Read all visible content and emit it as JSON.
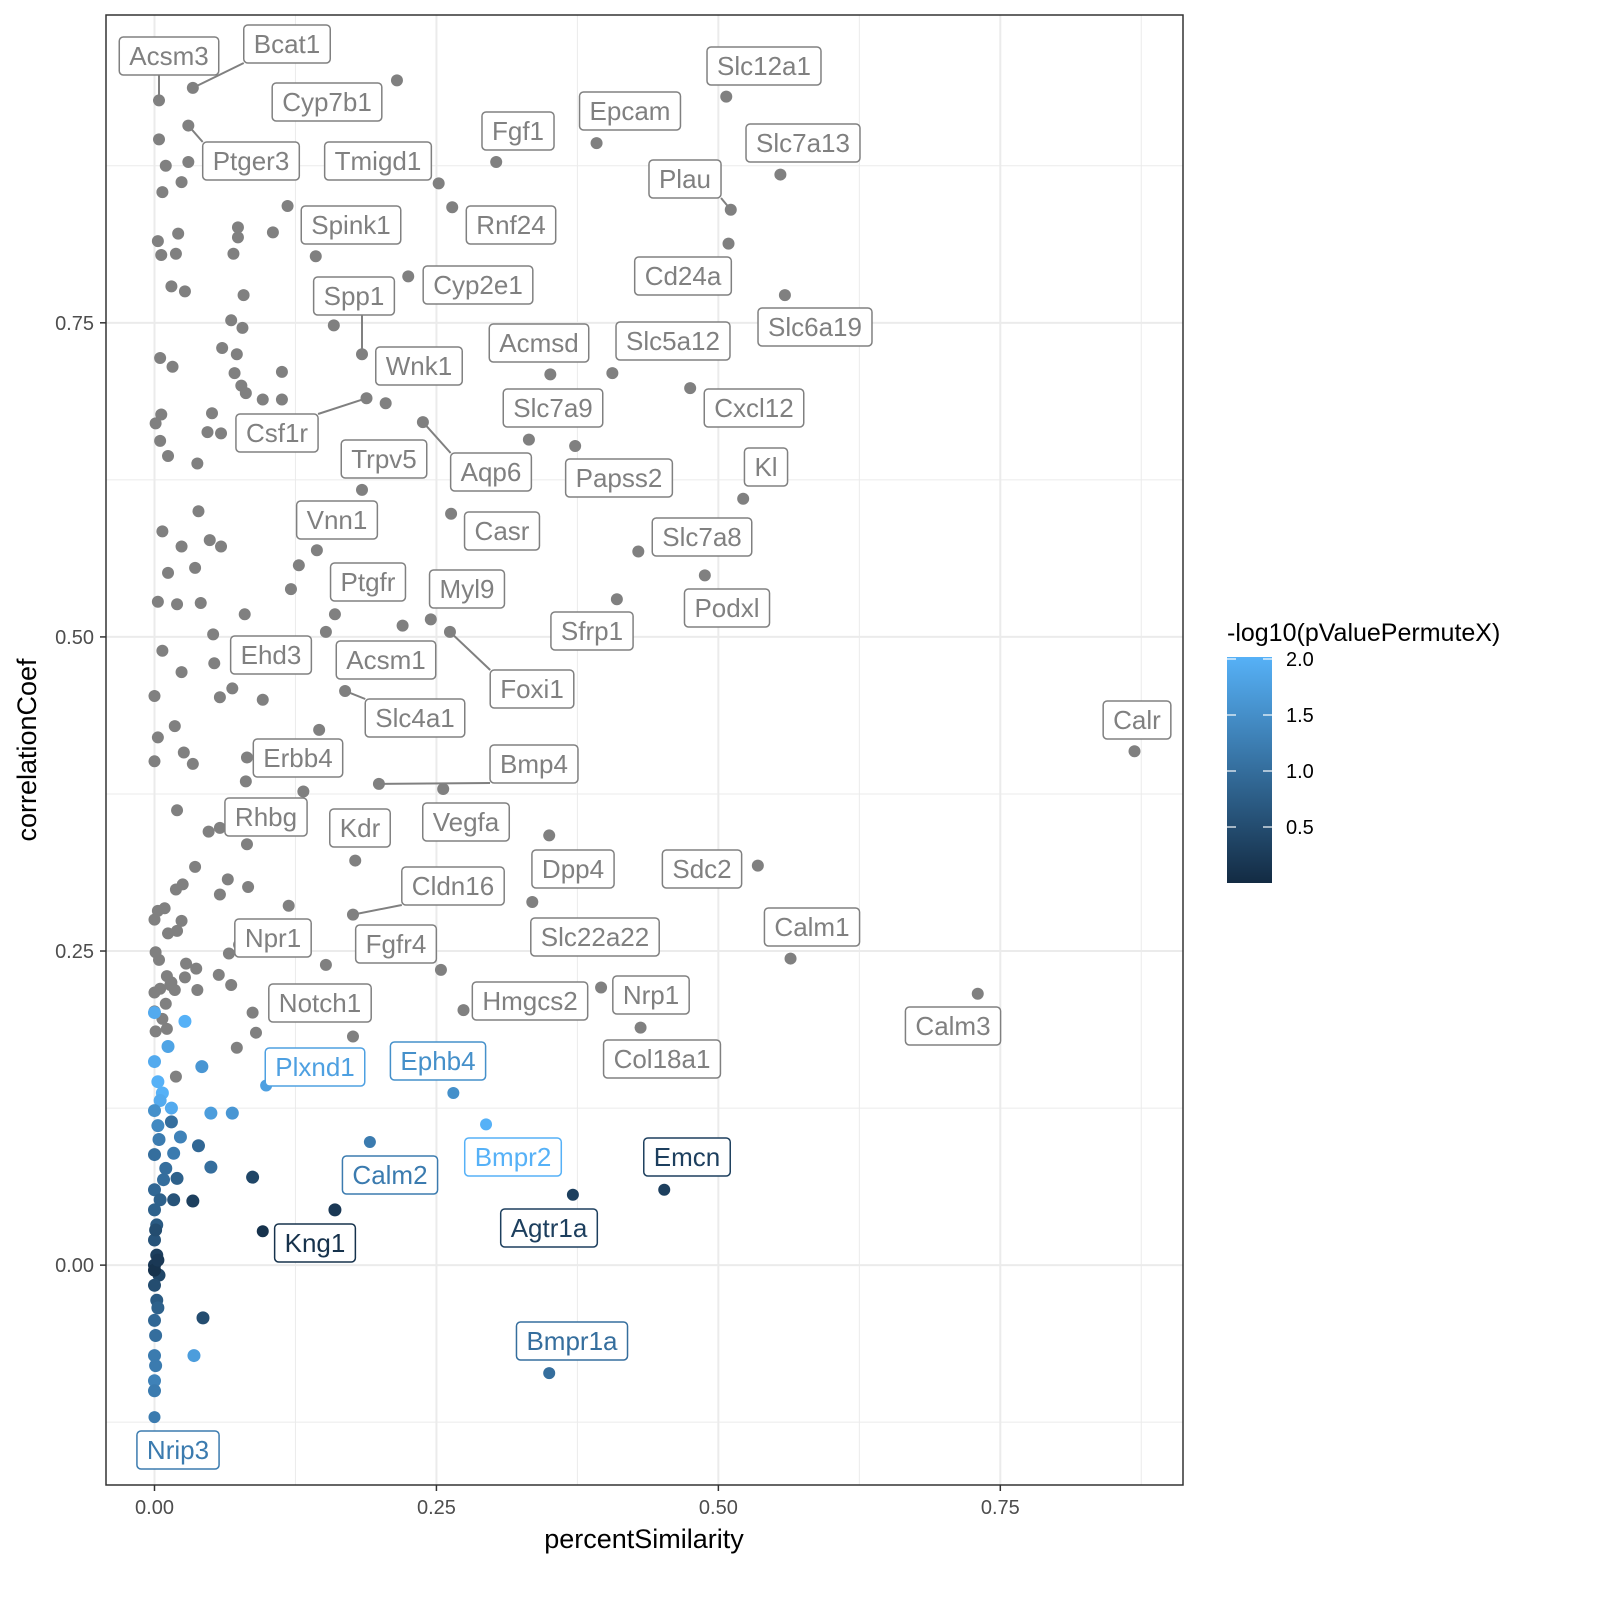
{
  "chart_data": {
    "type": "scatter",
    "title": "",
    "xlabel": "percentSimilarity",
    "ylabel": "correlationCoef",
    "xlim": [
      -0.043,
      0.912
    ],
    "ylim": [
      -0.175,
      0.995
    ],
    "x_ticks": [
      {
        "v": 0,
        "label": "0.00"
      },
      {
        "v": 0.25,
        "label": "0.25"
      },
      {
        "v": 0.5,
        "label": "0.50"
      },
      {
        "v": 0.75,
        "label": "0.75"
      }
    ],
    "y_ticks": [
      {
        "v": 0,
        "label": "0.00"
      },
      {
        "v": 0.25,
        "label": "0.25"
      },
      {
        "v": 0.5,
        "label": "0.50"
      },
      {
        "v": 0.75,
        "label": "0.75"
      }
    ],
    "grid": true,
    "legend": {
      "title": "-log10(pValuePermuteX)",
      "placement": "right",
      "range": [
        0,
        2
      ],
      "ticks": [
        {
          "v": 0.5,
          "label": "0.5"
        },
        {
          "v": 1.0,
          "label": "1.0"
        },
        {
          "v": 1.5,
          "label": "1.5"
        },
        {
          "v": 2.0,
          "label": "2.0"
        }
      ],
      "low_color": "#132B43",
      "high_color": "#56B1F7",
      "na_color": "#808080"
    },
    "labeled_points": [
      {
        "gene": "Acsm3",
        "x": 0.004,
        "y": 0.927,
        "p": null
      },
      {
        "gene": "Bcat1",
        "x": 0.034,
        "y": 0.937,
        "p": null
      },
      {
        "gene": "Cyp7b1",
        "x": 0.215,
        "y": 0.943,
        "p": null
      },
      {
        "gene": "Ptger3",
        "x": 0.03,
        "y": 0.907,
        "p": null
      },
      {
        "gene": "Tmigd1",
        "x": 0.252,
        "y": 0.861,
        "p": null
      },
      {
        "gene": "Fgf1",
        "x": 0.303,
        "y": 0.878,
        "p": null
      },
      {
        "gene": "Epcam",
        "x": 0.392,
        "y": 0.893,
        "p": null
      },
      {
        "gene": "Slc12a1",
        "x": 0.507,
        "y": 0.93,
        "p": null
      },
      {
        "gene": "Slc7a13",
        "x": 0.555,
        "y": 0.868,
        "p": null
      },
      {
        "gene": "Plau",
        "x": 0.511,
        "y": 0.84,
        "p": null
      },
      {
        "gene": "Spink1",
        "x": 0.118,
        "y": 0.843,
        "p": null
      },
      {
        "gene": "Rnf24",
        "x": 0.264,
        "y": 0.842,
        "p": null
      },
      {
        "gene": "Cd24a",
        "x": 0.509,
        "y": 0.813,
        "p": null
      },
      {
        "gene": "Cyp2e1",
        "x": 0.225,
        "y": 0.787,
        "p": null
      },
      {
        "gene": "Spp1",
        "x": 0.184,
        "y": 0.725,
        "p": null
      },
      {
        "gene": "Slc6a19",
        "x": 0.559,
        "y": 0.772,
        "p": null
      },
      {
        "gene": "Wnk1",
        "x": 0.205,
        "y": 0.686,
        "p": null
      },
      {
        "gene": "Acmsd",
        "x": 0.351,
        "y": 0.709,
        "p": null
      },
      {
        "gene": "Slc5a12",
        "x": 0.406,
        "y": 0.71,
        "p": null
      },
      {
        "gene": "Cxcl12",
        "x": 0.475,
        "y": 0.698,
        "p": null
      },
      {
        "gene": "Csf1r",
        "x": 0.188,
        "y": 0.69,
        "p": null
      },
      {
        "gene": "Slc7a9",
        "x": 0.332,
        "y": 0.657,
        "p": null
      },
      {
        "gene": "Aqp6",
        "x": 0.238,
        "y": 0.671,
        "p": null
      },
      {
        "gene": "Papss2",
        "x": 0.373,
        "y": 0.652,
        "p": null
      },
      {
        "gene": "Trpv5",
        "x": 0.184,
        "y": 0.617,
        "p": null
      },
      {
        "gene": "Kl",
        "x": 0.522,
        "y": 0.61,
        "p": null
      },
      {
        "gene": "Casr",
        "x": 0.263,
        "y": 0.598,
        "p": null
      },
      {
        "gene": "Vnn1",
        "x": 0.144,
        "y": 0.569,
        "p": null
      },
      {
        "gene": "Slc7a8",
        "x": 0.429,
        "y": 0.568,
        "p": null
      },
      {
        "gene": "Ptgfr",
        "x": 0.16,
        "y": 0.518,
        "p": null
      },
      {
        "gene": "Myl9",
        "x": 0.245,
        "y": 0.514,
        "p": null
      },
      {
        "gene": "Podxl",
        "x": 0.488,
        "y": 0.549,
        "p": null
      },
      {
        "gene": "Sfrp1",
        "x": 0.41,
        "y": 0.53,
        "p": null
      },
      {
        "gene": "Ehd3",
        "x": 0.053,
        "y": 0.479,
        "p": null
      },
      {
        "gene": "Acsm1",
        "x": 0.22,
        "y": 0.509,
        "p": null
      },
      {
        "gene": "Foxi1",
        "x": 0.262,
        "y": 0.504,
        "p": null
      },
      {
        "gene": "Slc4a1",
        "x": 0.169,
        "y": 0.457,
        "p": null
      },
      {
        "gene": "Calr",
        "x": 0.869,
        "y": 0.409,
        "p": null
      },
      {
        "gene": "Erbb4",
        "x": 0.082,
        "y": 0.404,
        "p": null
      },
      {
        "gene": "Bmp4",
        "x": 0.199,
        "y": 0.383,
        "p": null
      },
      {
        "gene": "Rhbg",
        "x": 0.058,
        "y": 0.348,
        "p": null
      },
      {
        "gene": "Kdr",
        "x": 0.178,
        "y": 0.322,
        "p": null
      },
      {
        "gene": "Vegfa",
        "x": 0.256,
        "y": 0.379,
        "p": null
      },
      {
        "gene": "Dpp4",
        "x": 0.35,
        "y": 0.342,
        "p": null
      },
      {
        "gene": "Sdc2",
        "x": 0.535,
        "y": 0.318,
        "p": null
      },
      {
        "gene": "Cldn16",
        "x": 0.176,
        "y": 0.279,
        "p": null
      },
      {
        "gene": "Slc22a22",
        "x": 0.335,
        "y": 0.289,
        "p": null
      },
      {
        "gene": "Calm1",
        "x": 0.564,
        "y": 0.244,
        "p": null
      },
      {
        "gene": "Npr1",
        "x": 0.066,
        "y": 0.248,
        "p": null
      },
      {
        "gene": "Fgfr4",
        "x": 0.254,
        "y": 0.235,
        "p": null
      },
      {
        "gene": "Notch1",
        "x": 0.176,
        "y": 0.182,
        "p": null
      },
      {
        "gene": "Hmgcs2",
        "x": 0.274,
        "y": 0.203,
        "p": null
      },
      {
        "gene": "Nrp1",
        "x": 0.396,
        "y": 0.221,
        "p": null
      },
      {
        "gene": "Calm3",
        "x": 0.73,
        "y": 0.216,
        "p": null
      },
      {
        "gene": "Col18a1",
        "x": 0.431,
        "y": 0.189,
        "p": null
      },
      {
        "gene": "Plxnd1",
        "x": 0.099,
        "y": 0.143,
        "p": 1.75
      },
      {
        "gene": "Ephb4",
        "x": 0.265,
        "y": 0.137,
        "p": 1.5
      },
      {
        "gene": "Bmpr2",
        "x": 0.294,
        "y": 0.112,
        "p": 2.0
      },
      {
        "gene": "Emcn",
        "x": 0.452,
        "y": 0.06,
        "p": 0.3
      },
      {
        "gene": "Calm2",
        "x": 0.191,
        "y": 0.098,
        "p": 1.2
      },
      {
        "gene": "Agtr1a",
        "x": 0.371,
        "y": 0.056,
        "p": 0.3
      },
      {
        "gene": "Kng1",
        "x": 0.096,
        "y": 0.027,
        "p": 0.1
      },
      {
        "gene": "Bmpr1a",
        "x": 0.35,
        "y": -0.086,
        "p": 1.0
      },
      {
        "gene": "Nrip3",
        "x": 0.0,
        "y": -0.121,
        "p": 1.2
      }
    ],
    "gray_points": [
      [
        0.004,
        0.896
      ],
      [
        0.01,
        0.875
      ],
      [
        0.007,
        0.854
      ],
      [
        0.024,
        0.862
      ],
      [
        0.03,
        0.878
      ],
      [
        0.003,
        0.815
      ],
      [
        0.006,
        0.804
      ],
      [
        0.019,
        0.805
      ],
      [
        0.021,
        0.821
      ],
      [
        0.015,
        0.779
      ],
      [
        0.027,
        0.775
      ],
      [
        0.074,
        0.826
      ],
      [
        0.074,
        0.818
      ],
      [
        0.07,
        0.805
      ],
      [
        0.105,
        0.822
      ],
      [
        0.143,
        0.803
      ],
      [
        0.079,
        0.772
      ],
      [
        0.068,
        0.752
      ],
      [
        0.078,
        0.746
      ],
      [
        0.06,
        0.73
      ],
      [
        0.073,
        0.725
      ],
      [
        0.071,
        0.71
      ],
      [
        0.077,
        0.7
      ],
      [
        0.081,
        0.694
      ],
      [
        0.096,
        0.689
      ],
      [
        0.113,
        0.689
      ],
      [
        0.113,
        0.711
      ],
      [
        0.051,
        0.678
      ],
      [
        0.047,
        0.663
      ],
      [
        0.059,
        0.662
      ],
      [
        0.006,
        0.677
      ],
      [
        0.001,
        0.67
      ],
      [
        0.005,
        0.656
      ],
      [
        0.012,
        0.644
      ],
      [
        0.038,
        0.638
      ],
      [
        0.159,
        0.748
      ],
      [
        0.005,
        0.722
      ],
      [
        0.016,
        0.715
      ],
      [
        0.039,
        0.6
      ],
      [
        0.007,
        0.584
      ],
      [
        0.024,
        0.572
      ],
      [
        0.049,
        0.577
      ],
      [
        0.059,
        0.572
      ],
      [
        0.012,
        0.551
      ],
      [
        0.036,
        0.555
      ],
      [
        0.003,
        0.528
      ],
      [
        0.02,
        0.526
      ],
      [
        0.041,
        0.527
      ],
      [
        0.08,
        0.518
      ],
      [
        0.121,
        0.538
      ],
      [
        0.128,
        0.557
      ],
      [
        0.152,
        0.504
      ],
      [
        0.052,
        0.502
      ],
      [
        0.007,
        0.489
      ],
      [
        0.024,
        0.472
      ],
      [
        0.069,
        0.459
      ],
      [
        0.058,
        0.452
      ],
      [
        0.096,
        0.45
      ],
      [
        0.0,
        0.453
      ],
      [
        0.146,
        0.426
      ],
      [
        0.003,
        0.42
      ],
      [
        0.018,
        0.429
      ],
      [
        0.026,
        0.408
      ],
      [
        0.0,
        0.401
      ],
      [
        0.034,
        0.399
      ],
      [
        0.081,
        0.385
      ],
      [
        0.132,
        0.377
      ],
      [
        0.02,
        0.362
      ],
      [
        0.048,
        0.345
      ],
      [
        0.082,
        0.335
      ],
      [
        0.036,
        0.317
      ],
      [
        0.025,
        0.303
      ],
      [
        0.019,
        0.299
      ],
      [
        0.065,
        0.307
      ],
      [
        0.058,
        0.295
      ],
      [
        0.083,
        0.301
      ],
      [
        0.009,
        0.284
      ],
      [
        0.003,
        0.282
      ],
      [
        0.0,
        0.275
      ],
      [
        0.012,
        0.264
      ],
      [
        0.02,
        0.266
      ],
      [
        0.024,
        0.274
      ],
      [
        0.001,
        0.249
      ],
      [
        0.004,
        0.243
      ],
      [
        0.028,
        0.24
      ],
      [
        0.037,
        0.236
      ],
      [
        0.011,
        0.23
      ],
      [
        0.015,
        0.225
      ],
      [
        0.027,
        0.229
      ],
      [
        0.057,
        0.231
      ],
      [
        0.0,
        0.217
      ],
      [
        0.005,
        0.22
      ],
      [
        0.014,
        0.223
      ],
      [
        0.018,
        0.219
      ],
      [
        0.038,
        0.219
      ],
      [
        0.068,
        0.223
      ],
      [
        0.087,
        0.201
      ],
      [
        0.01,
        0.208
      ],
      [
        0.0,
        0.202
      ],
      [
        0.007,
        0.196
      ],
      [
        0.09,
        0.185
      ],
      [
        0.073,
        0.173
      ],
      [
        0.152,
        0.239
      ],
      [
        0.119,
        0.286
      ],
      [
        0.075,
        0.255
      ],
      [
        0.011,
        0.188
      ],
      [
        0.019,
        0.15
      ],
      [
        0.001,
        0.186
      ]
    ],
    "colored_points": [
      [
        0.0,
        0.201,
        1.9
      ],
      [
        0.027,
        0.194,
        2.0
      ],
      [
        0.0,
        0.162,
        1.9
      ],
      [
        0.012,
        0.174,
        1.8
      ],
      [
        0.003,
        0.146,
        2.0
      ],
      [
        0.042,
        0.158,
        1.6
      ],
      [
        0.007,
        0.137,
        2.0
      ],
      [
        0.005,
        0.131,
        1.9
      ],
      [
        0.015,
        0.125,
        1.9
      ],
      [
        0.05,
        0.121,
        1.7
      ],
      [
        0.069,
        0.121,
        1.6
      ],
      [
        0.0,
        0.123,
        1.5
      ],
      [
        0.003,
        0.111,
        1.4
      ],
      [
        0.015,
        0.114,
        1.0
      ],
      [
        0.023,
        0.102,
        1.3
      ],
      [
        0.039,
        0.095,
        0.9
      ],
      [
        0.004,
        0.1,
        1.2
      ],
      [
        0.0,
        0.088,
        1.0
      ],
      [
        0.017,
        0.089,
        1.2
      ],
      [
        0.01,
        0.077,
        1.0
      ],
      [
        0.05,
        0.078,
        1.0
      ],
      [
        0.02,
        0.069,
        0.8
      ],
      [
        0.008,
        0.068,
        1.0
      ],
      [
        0.0,
        0.06,
        0.9
      ],
      [
        0.005,
        0.052,
        0.8
      ],
      [
        0.017,
        0.052,
        0.6
      ],
      [
        0.034,
        0.051,
        0.3
      ],
      [
        0.087,
        0.07,
        0.4
      ],
      [
        0.16,
        0.044,
        0.2
      ],
      [
        0.0,
        0.044,
        0.8
      ],
      [
        0.002,
        0.032,
        0.7
      ],
      [
        0.0,
        0.02,
        0.6
      ],
      [
        0.002,
        0.008,
        0.3
      ],
      [
        0.0,
        0.0,
        0.2
      ],
      [
        0.004,
        -0.008,
        0.4
      ],
      [
        0.0,
        -0.016,
        0.5
      ],
      [
        0.002,
        -0.028,
        0.7
      ],
      [
        0.003,
        -0.034,
        0.8
      ],
      [
        0.043,
        -0.042,
        0.5
      ],
      [
        0.0,
        -0.044,
        0.9
      ],
      [
        0.001,
        -0.056,
        1.0
      ],
      [
        0.0,
        -0.072,
        1.2
      ],
      [
        0.035,
        -0.072,
        1.7
      ],
      [
        0.001,
        -0.08,
        1.2
      ],
      [
        0.0,
        -0.092,
        1.3
      ],
      [
        0.0,
        -0.1,
        1.2
      ],
      [
        0.0,
        -0.004,
        0.1
      ],
      [
        0.003,
        0.004,
        0.2
      ],
      [
        0.001,
        0.028,
        0.5
      ]
    ]
  }
}
